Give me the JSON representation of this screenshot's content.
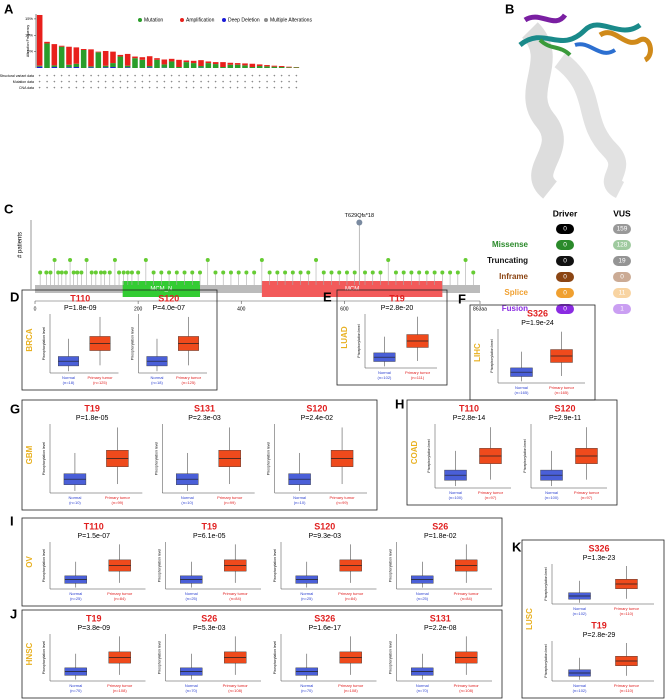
{
  "alteration": {
    "label": "A",
    "ylabel": "Alteration Frequency",
    "legend": [
      {
        "name": "Mutation",
        "color": "#2a9d2a"
      },
      {
        "name": "Amplification",
        "color": "#e8201c"
      },
      {
        "name": "Deep Deletion",
        "color": "#1a1ad8"
      },
      {
        "name": "Multiple Alterations",
        "color": "#8c8c8c"
      }
    ],
    "ylim": [
      0,
      16.5
    ],
    "yticks": [
      {
        "value": 5,
        "label": "5%"
      },
      {
        "value": 10,
        "label": "10%"
      },
      {
        "value": 15,
        "label": "15%"
      }
    ],
    "rows": [
      "Structural variant data",
      "Mutation data",
      "CNA data"
    ],
    "mutation": [
      0.3,
      7.5,
      0.5,
      6.5,
      0.8,
      1,
      5.5,
      0.3,
      4.8,
      0.5,
      1.2,
      3.5,
      0.5,
      3,
      2.5,
      0.4,
      2.5,
      1,
      2,
      0.3,
      1.8,
      1.5,
      0.5,
      1.5,
      1.2,
      0.3,
      1,
      1,
      0.8,
      0.3,
      0.6,
      0.5,
      0.4,
      0.3,
      0.2,
      0.2
    ],
    "amplification": [
      15.5,
      0.5,
      6.5,
      0.3,
      5.5,
      5,
      0.3,
      5.2,
      0.2,
      4.5,
      3.5,
      0.5,
      3.6,
      0.5,
      0.8,
      3,
      0.5,
      1.5,
      0.8,
      2.2,
      0.5,
      0.7,
      1.8,
      0.5,
      0.6,
      1.5,
      0.6,
      0.5,
      0.6,
      1,
      0.5,
      0.4,
      0.3,
      0.3,
      0.2,
      0.1
    ],
    "deep_deletion": [
      0.4,
      0,
      0.3,
      0,
      0.2,
      0.3,
      0,
      0.2,
      0,
      0.2,
      0.3,
      0,
      0.2,
      0,
      0,
      0.2,
      0,
      0.1,
      0,
      0,
      0,
      0,
      0.1,
      0,
      0,
      0,
      0,
      0,
      0,
      0,
      0,
      0,
      0,
      0,
      0,
      0
    ]
  },
  "structure": {
    "label": "B"
  },
  "lollipop": {
    "label": "C",
    "ylabel": "# patients",
    "xlim": [
      0,
      863
    ],
    "ylim": [
      0,
      6
    ],
    "xticks": [
      0,
      200,
      400,
      600,
      {
        "value": 863,
        "label": "863aa"
      }
    ],
    "domains": [
      {
        "name": "MCM_N",
        "start": 170,
        "end": 320,
        "color": "#33cc33"
      },
      {
        "name": "MCM",
        "start": 440,
        "end": 790,
        "color": "#f25a5a"
      }
    ],
    "hotspot": {
      "label": "T629Qfs*18",
      "position": 629,
      "count": 5
    },
    "positions": [
      10,
      22,
      30,
      38,
      45,
      52,
      60,
      68,
      75,
      82,
      90,
      100,
      110,
      118,
      128,
      135,
      145,
      155,
      163,
      172,
      180,
      188,
      200,
      215,
      230,
      245,
      260,
      275,
      290,
      305,
      320,
      335,
      350,
      365,
      380,
      395,
      410,
      425,
      440,
      455,
      470,
      485,
      500,
      515,
      530,
      545,
      560,
      575,
      590,
      605,
      620,
      640,
      655,
      670,
      685,
      700,
      715,
      730,
      745,
      760,
      775,
      790,
      805,
      820,
      835,
      850
    ],
    "counts": [
      1,
      1,
      1,
      2,
      1,
      1,
      1,
      2,
      1,
      1,
      1,
      2,
      1,
      1,
      1,
      1,
      1,
      2,
      1,
      1,
      1,
      1,
      1,
      2,
      1,
      1,
      1,
      1,
      1,
      1,
      1,
      2,
      1,
      1,
      1,
      1,
      1,
      1,
      2,
      1,
      1,
      1,
      1,
      1,
      1,
      2,
      1,
      1,
      1,
      1,
      1,
      1,
      1,
      1,
      2,
      1,
      1,
      1,
      1,
      1,
      1,
      1,
      1,
      1,
      2,
      1
    ]
  },
  "mutation_table": {
    "headers": [
      "Driver",
      "VUS"
    ],
    "totals": [
      0,
      159
    ],
    "rows": [
      {
        "name": "Missense",
        "driver": 0,
        "vus": 128,
        "color": "#2a8a2a"
      },
      {
        "name": "Truncating",
        "driver": 0,
        "vus": 19,
        "color": "#111111"
      },
      {
        "name": "Inframe",
        "driver": 0,
        "vus": 0,
        "color": "#8b4513"
      },
      {
        "name": "Splice",
        "driver": 0,
        "vus": 11,
        "color": "#f0a030"
      },
      {
        "name": "Fusion",
        "driver": 0,
        "vus": 1,
        "color": "#8a2be2"
      }
    ]
  },
  "box_ylabel": "Phosphorylation level",
  "box_panels": [
    {
      "label": "D",
      "cancer": "BRCA",
      "normal": "Normal",
      "tumor": "Primary tumor",
      "n_normal": "(n=18)",
      "n_tumor": "(n=125)",
      "plots": [
        {
          "site": "T110",
          "p": "P=1.8e-09"
        },
        {
          "site": "S120",
          "p": "P=4.0e-07"
        }
      ]
    },
    {
      "label": "E",
      "cancer": "LUAD",
      "normal": "Normal",
      "tumor": "Primary tumor",
      "n_normal": "(n=102)",
      "n_tumor": "(n=111)",
      "plots": [
        {
          "site": "T19",
          "p": "P=2.8e-20"
        }
      ]
    },
    {
      "label": "F",
      "cancer": "LIHC",
      "normal": "Normal",
      "tumor": "Primary tumor",
      "n_normal": "(n=165)",
      "n_tumor": "(n=165)",
      "plots": [
        {
          "site": "S326",
          "p": "P=1.9e-24"
        }
      ]
    },
    {
      "label": "G",
      "cancer": "GBM",
      "normal": "Normal",
      "tumor": "Primary tumor",
      "n_normal": "(n=10)",
      "n_tumor": "(n=99)",
      "plots": [
        {
          "site": "T19",
          "p": "P=1.8e-05"
        },
        {
          "site": "S131",
          "p": "P=2.3e-03"
        },
        {
          "site": "S120",
          "p": "P=2.4e-02"
        }
      ]
    },
    {
      "label": "H",
      "cancer": "COAD",
      "normal": "Normal",
      "tumor": "Primary tumor",
      "n_normal": "(n=100)",
      "n_tumor": "(n=97)",
      "plots": [
        {
          "site": "T110",
          "p": "P=2.8e-14"
        },
        {
          "site": "S120",
          "p": "P=2.9e-11"
        }
      ]
    },
    {
      "label": "I",
      "cancer": "OV",
      "normal": "Normal",
      "tumor": "Primary tumor",
      "n_normal": "(n=25)",
      "n_tumor": "(n=84)",
      "plots": [
        {
          "site": "T110",
          "p": "P=1.5e-07"
        },
        {
          "site": "T19",
          "p": "P=6.1e-05"
        },
        {
          "site": "S120",
          "p": "P=9.3e-03"
        },
        {
          "site": "S26",
          "p": "P=1.8e-02"
        }
      ]
    },
    {
      "label": "J",
      "cancer": "HNSC",
      "normal": "Normal",
      "tumor": "Primary tumor",
      "n_normal": "(n=70)",
      "n_tumor": "(n=108)",
      "plots": [
        {
          "site": "T19",
          "p": "P=3.8e-09"
        },
        {
          "site": "S26",
          "p": "P=5.3e-03"
        },
        {
          "site": "S326",
          "p": "P=1.6e-17"
        },
        {
          "site": "S131",
          "p": "P=2.2e-08"
        }
      ]
    },
    {
      "label": "K",
      "cancer": "LUSC",
      "normal": "Normal",
      "tumor": "Primary tumor",
      "n_normal": "(n=102)",
      "n_tumor": "(n=110)",
      "plots": [
        {
          "site": "S326",
          "p": "P=1.3e-23"
        },
        {
          "site": "T19",
          "p": "P=2.8e-29"
        }
      ]
    }
  ]
}
